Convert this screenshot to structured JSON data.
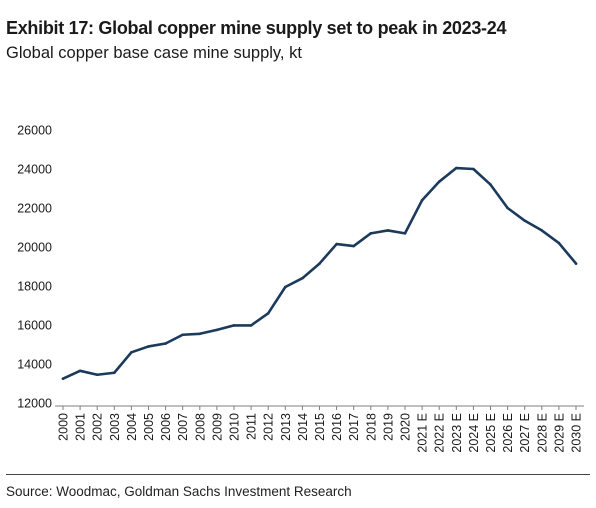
{
  "title": "Exhibit 17: Global copper mine supply set to peak in 2023-24",
  "subtitle": "Global copper base case mine supply, kt",
  "source": "Source: Woodmac, Goldman Sachs Investment Research",
  "line_color": "#1b3a5c",
  "chart_data": {
    "type": "line",
    "title": "Exhibit 17: Global copper mine supply set to peak in 2023-24",
    "subtitle": "Global copper base case mine supply, kt",
    "xlabel": "",
    "ylabel": "",
    "ylim": [
      12000,
      26000
    ],
    "yticks": [
      12000,
      14000,
      16000,
      18000,
      20000,
      22000,
      24000,
      26000
    ],
    "grid": false,
    "categories": [
      "2000",
      "2001",
      "2002",
      "2003",
      "2004",
      "2005",
      "2006",
      "2007",
      "2008",
      "2009",
      "2010",
      "2011",
      "2012",
      "2013",
      "2014",
      "2015",
      "2016",
      "2017",
      "2018",
      "2019",
      "2020",
      "2021 E",
      "2022 E",
      "2023 E",
      "2024 E",
      "2025 E",
      "2026 E",
      "2027 E",
      "2028 E",
      "2029 E",
      "2030 E"
    ],
    "series": [
      {
        "values": [
          13250,
          13650,
          13450,
          13550,
          14600,
          14900,
          15050,
          15500,
          15550,
          15750,
          15980,
          15980,
          16600,
          17950,
          18400,
          19150,
          20150,
          20050,
          20700,
          20850,
          20700,
          22400,
          23350,
          24050,
          24000,
          23200,
          22000,
          21350,
          20850,
          20200,
          19150
        ]
      }
    ]
  }
}
